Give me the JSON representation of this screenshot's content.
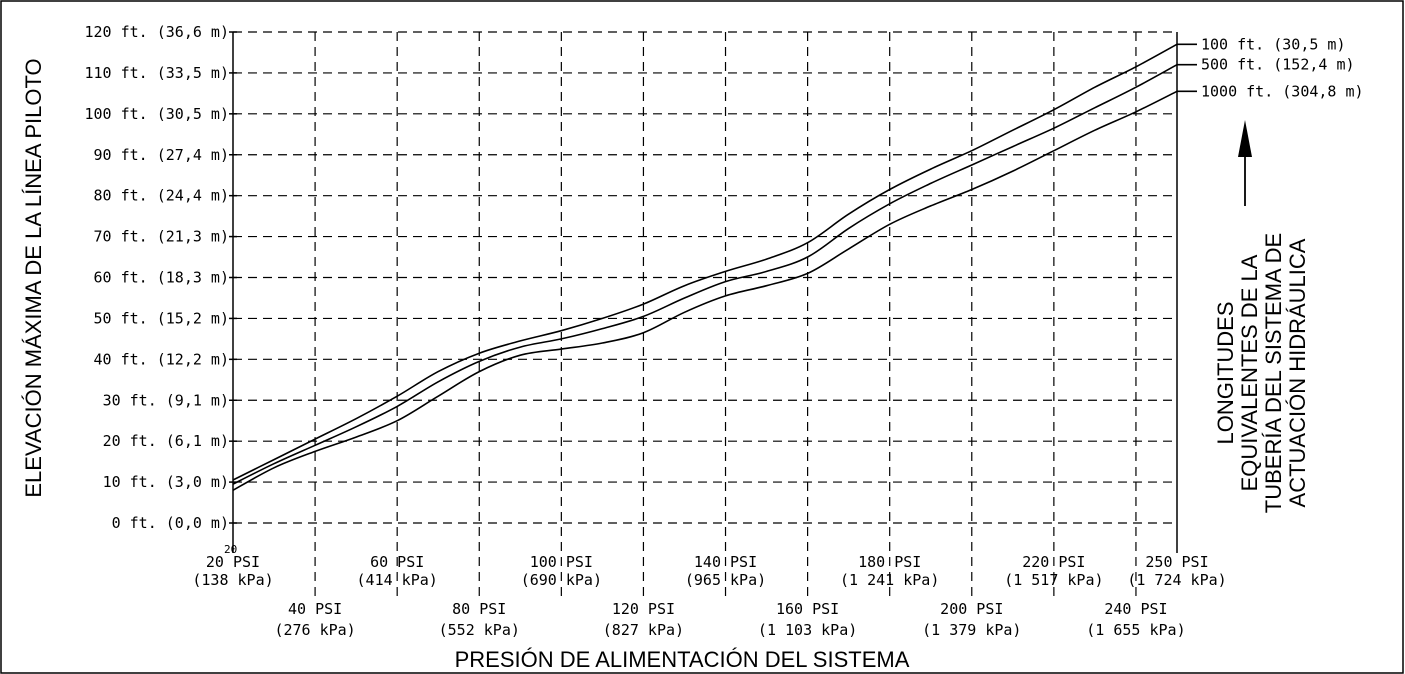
{
  "chart_data": {
    "type": "line",
    "ylabel": "ELEVACIÓN MÁXIMA DE LA LÍNEA PILOTO",
    "xlabel": "PRESIÓN DE ALIMENTACIÓN DEL SISTEMA",
    "legend_title": [
      "LONGITUDES",
      "EQUIVALENTES DE LA",
      "TUBERÍA DEL SISTEMA DE",
      "ACTUACIÓN HIDRÁULICA"
    ],
    "xlim": [
      20,
      250
    ],
    "ylim": [
      0,
      120
    ],
    "x_origin_note": "20",
    "grid": true,
    "legend_position": "right",
    "y_ticks": [
      {
        "value": 120,
        "label": "120 ft. (36,6 m)"
      },
      {
        "value": 110,
        "label": "110 ft. (33,5 m)"
      },
      {
        "value": 100,
        "label": "100 ft. (30,5 m)"
      },
      {
        "value": 90,
        "label": "90 ft. (27,4 m)"
      },
      {
        "value": 80,
        "label": "80 ft. (24,4 m)"
      },
      {
        "value": 70,
        "label": "70 ft. (21,3 m)"
      },
      {
        "value": 60,
        "label": "60 ft. (18,3 m)"
      },
      {
        "value": 50,
        "label": "50 ft. (15,2 m)"
      },
      {
        "value": 40,
        "label": "40 ft. (12,2 m)"
      },
      {
        "value": 30,
        "label": "30 ft. (9,1 m)"
      },
      {
        "value": 20,
        "label": "20 ft. (6,1 m)"
      },
      {
        "value": 10,
        "label": "10 ft. (3,0 m)"
      },
      {
        "value": 0,
        "label": "0 ft. (0,0 m)"
      }
    ],
    "x_ticks_upper": [
      {
        "value": 20,
        "psi": "20 PSI",
        "kpa": "(138 kPa)"
      },
      {
        "value": 60,
        "psi": "60 PSI",
        "kpa": "(414 kPa)"
      },
      {
        "value": 100,
        "psi": "100 PSI",
        "kpa": "(690 kPa)"
      },
      {
        "value": 140,
        "psi": "140 PSI",
        "kpa": "(965 kPa)"
      },
      {
        "value": 180,
        "psi": "180 PSI",
        "kpa": "(1 241 kPa)"
      },
      {
        "value": 220,
        "psi": "220 PSI",
        "kpa": "(1 517 kPa)"
      },
      {
        "value": 250,
        "psi": "250 PSI",
        "kpa": "(1 724 kPa)"
      }
    ],
    "x_ticks_lower": [
      {
        "value": 40,
        "psi": "40 PSI",
        "kpa": "(276 kPa)"
      },
      {
        "value": 80,
        "psi": "80 PSI",
        "kpa": "(552 kPa)"
      },
      {
        "value": 120,
        "psi": "120 PSI",
        "kpa": "(827 kPa)"
      },
      {
        "value": 160,
        "psi": "160 PSI",
        "kpa": "(1 103 kPa)"
      },
      {
        "value": 200,
        "psi": "200 PSI",
        "kpa": "(1 379 kPa)"
      },
      {
        "value": 240,
        "psi": "240 PSI",
        "kpa": "(1 655 kPa)"
      }
    ],
    "series": [
      {
        "name": "100 ft. (30,5 m)",
        "x": [
          20,
          30,
          40,
          50,
          60,
          70,
          80,
          90,
          100,
          110,
          120,
          130,
          140,
          150,
          160,
          170,
          180,
          190,
          200,
          210,
          220,
          230,
          240,
          250
        ],
        "y": [
          10.5,
          15.5,
          20.5,
          25.5,
          31,
          37,
          41.5,
          44.5,
          47,
          50,
          53.5,
          58,
          61.5,
          64.5,
          68.5,
          75.5,
          81.5,
          86.5,
          91,
          96,
          101,
          106.5,
          111.5,
          117
        ]
      },
      {
        "name": "500 ft. (152,4 m)",
        "x": [
          20,
          30,
          40,
          50,
          60,
          70,
          80,
          90,
          100,
          110,
          120,
          130,
          140,
          150,
          160,
          170,
          180,
          190,
          200,
          210,
          220,
          230,
          240,
          250
        ],
        "y": [
          9.5,
          14.5,
          19,
          23.5,
          28.5,
          34.5,
          39.5,
          43,
          45,
          47.5,
          50.5,
          55,
          59,
          61.5,
          65,
          72,
          78,
          83,
          87.5,
          92,
          96.5,
          101.5,
          106.5,
          112
        ]
      },
      {
        "name": "1000 ft. (304,8 m)",
        "x": [
          20,
          30,
          40,
          50,
          60,
          70,
          80,
          90,
          100,
          110,
          120,
          130,
          140,
          150,
          160,
          170,
          180,
          190,
          200,
          210,
          220,
          230,
          240,
          250
        ],
        "y": [
          8,
          13.5,
          17.5,
          21,
          25,
          31,
          37,
          41,
          42.5,
          44,
          46.5,
          51.5,
          55.5,
          58,
          61,
          67,
          73,
          77.5,
          81.5,
          86,
          91,
          96,
          100.5,
          105.5
        ]
      }
    ]
  }
}
